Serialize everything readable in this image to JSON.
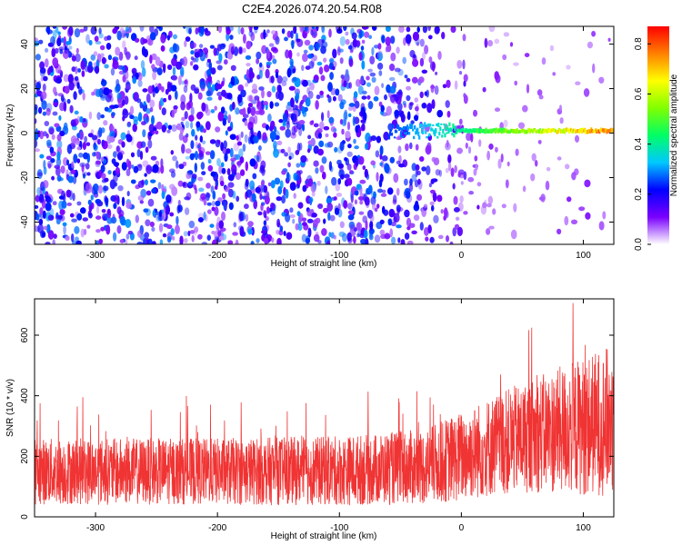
{
  "figure_title": "C2E4.2026.074.20.54.R08",
  "chart_data": [
    {
      "type": "heatmap",
      "title": "C2E4.2026.074.20.54.R08",
      "xlabel": "Height of straight line (km)",
      "ylabel": "Frequency (Hz)",
      "xlim": [
        -350,
        125
      ],
      "ylim": [
        -50,
        48
      ],
      "xticks": [
        -300,
        -200,
        -100,
        0,
        100
      ],
      "yticks": [
        -40,
        -20,
        0,
        20,
        40
      ],
      "xtick_labels": [
        "-300",
        "-200",
        "-100",
        "0",
        "100"
      ],
      "ytick_labels": [
        "-40",
        "-20",
        "0",
        "20",
        "40"
      ],
      "signal_line": {
        "frequency": 1,
        "x_start": -60,
        "x_end": 125,
        "peak_amplitude": 0.85
      },
      "noise_amplitude_range": [
        0.05,
        0.3
      ],
      "colorbar": {
        "label": "Normalized spectral amplitude",
        "range": [
          0,
          0.87
        ],
        "ticks": [
          0.0,
          0.2,
          0.4,
          0.6,
          0.8
        ],
        "tick_labels": [
          "0.0",
          "0.2",
          "0.4",
          "0.6",
          "0.8"
        ],
        "colors": [
          "#ffffff",
          "#7a00ff",
          "#0000ff",
          "#00c8ff",
          "#00ff66",
          "#80ff00",
          "#ffff00",
          "#ff8000",
          "#ff0000"
        ]
      }
    },
    {
      "type": "line",
      "xlabel": "Height of straight line (km)",
      "ylabel": "SNR (10 * v/v)",
      "xlim": [
        -350,
        125
      ],
      "ylim": [
        0,
        720
      ],
      "xticks": [
        -300,
        -200,
        -100,
        0,
        100
      ],
      "yticks": [
        0,
        200,
        400,
        600
      ],
      "xtick_labels": [
        "-300",
        "-200",
        "-100",
        "0",
        "100"
      ],
      "ytick_labels": [
        "0",
        "200",
        "400",
        "600"
      ],
      "color": "#f03333",
      "envelope": {
        "x": [
          -350,
          -300,
          -200,
          -100,
          -30,
          0,
          30,
          60,
          100,
          125
        ],
        "mean": [
          150,
          150,
          150,
          152,
          165,
          200,
          240,
          270,
          300,
          320
        ],
        "spread": [
          110,
          110,
          110,
          115,
          125,
          150,
          170,
          190,
          230,
          250
        ]
      }
    }
  ]
}
